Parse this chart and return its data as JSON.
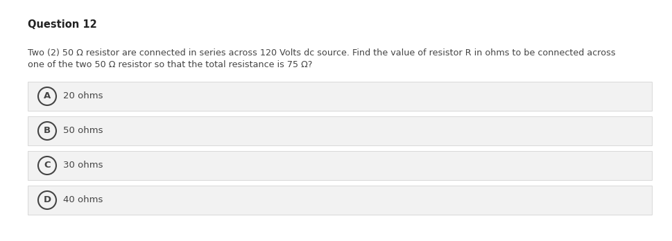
{
  "title": "Question 12",
  "question_line1": "Two (2) 50 Ω resistor are connected in series across 120 Volts dc source. Find the value of resistor R in ohms to be connected across",
  "question_line2": "one of the two 50 Ω resistor so that the total resistance is 75 Ω?",
  "options": [
    {
      "label": "A",
      "text": "20 ohms"
    },
    {
      "label": "B",
      "text": "50 ohms"
    },
    {
      "label": "C",
      "text": "30 ohms"
    },
    {
      "label": "D",
      "text": "40 ohms"
    }
  ],
  "bg_color": "#ffffff",
  "option_bg_color": "#f2f2f2",
  "option_border_color": "#d8d8d8",
  "title_color": "#222222",
  "question_color": "#444444",
  "option_text_color": "#444444",
  "circle_edge_color": "#444444",
  "title_fontsize": 10.5,
  "question_fontsize": 9.2,
  "option_fontsize": 9.5,
  "fig_width": 9.7,
  "fig_height": 3.48,
  "dpi": 100
}
